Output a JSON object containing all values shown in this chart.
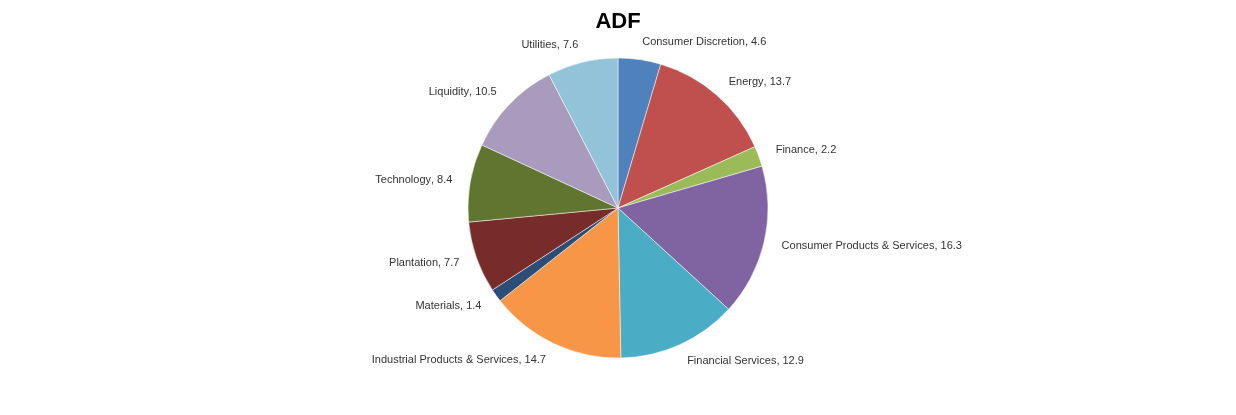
{
  "chart_data": {
    "type": "pie",
    "title": "ADF",
    "categories": [
      "Consumer Discretion",
      "Energy",
      "Finance",
      "Consumer Products & Services",
      "Financial Services",
      "Industrial Products & Services",
      "Materials",
      "Plantation",
      "Technology",
      "Liquidity",
      "Utilities"
    ],
    "values": [
      4.6,
      13.7,
      2.2,
      16.3,
      12.9,
      14.7,
      1.4,
      7.7,
      8.4,
      10.5,
      7.6
    ],
    "colors": [
      "#4f81bd",
      "#c0504d",
      "#9bbb59",
      "#8064a2",
      "#4bacc6",
      "#f79646",
      "#2c4d75",
      "#772c2a",
      "#5f7530",
      "#a99bbd",
      "#93c3d8"
    ],
    "value_labels": [
      ", 4.6",
      ", 13.7",
      ", 2.2",
      ", 16.3",
      ", 12.9",
      ", 14.7",
      ", 1.4",
      ", 7.7",
      ", 8.4",
      ", 10.5",
      ", 7.6"
    ],
    "legend": false
  }
}
